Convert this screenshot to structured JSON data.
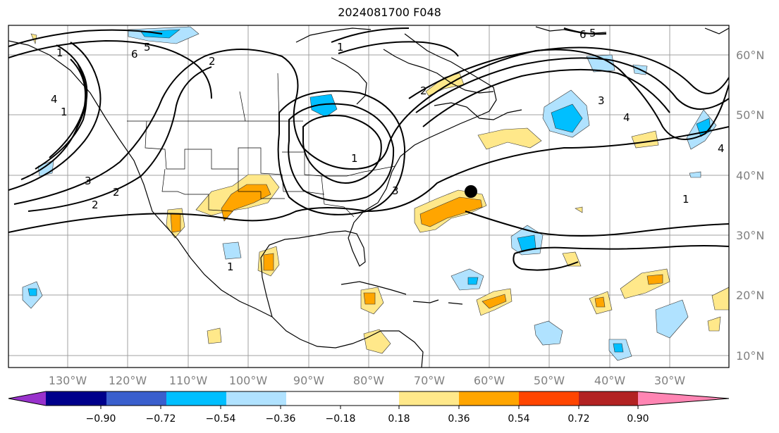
{
  "title": "2024081700 F048",
  "map": {
    "lon_labels": [
      "130°W",
      "120°W",
      "110°W",
      "100°W",
      "90°W",
      "80°W",
      "70°W",
      "60°W",
      "50°W",
      "40°W",
      "30°W"
    ],
    "lat_labels": [
      "60°N",
      "50°N",
      "40°N",
      "30°N",
      "20°N",
      "10°N"
    ],
    "contour_labels": [
      "1",
      "2",
      "3",
      "4",
      "5",
      "6",
      "1",
      "2",
      "3",
      "4",
      "5",
      "6",
      "1",
      "2",
      "3",
      "4",
      "1",
      "1",
      "1",
      "2"
    ],
    "marker": "storm-center-dot"
  },
  "colorbar": {
    "ticks": [
      "−0.90",
      "−0.72",
      "−0.54",
      "−0.36",
      "−0.18",
      "0.18",
      "0.36",
      "0.54",
      "0.72",
      "0.90"
    ],
    "colors": [
      "#9932cc",
      "#00008b",
      "#3a5fcd",
      "#00bfff",
      "#b0e2ff",
      "#ffffff",
      "#ffe88a",
      "#ffa500",
      "#ff4500",
      "#b22222",
      "#ff85b3"
    ]
  }
}
